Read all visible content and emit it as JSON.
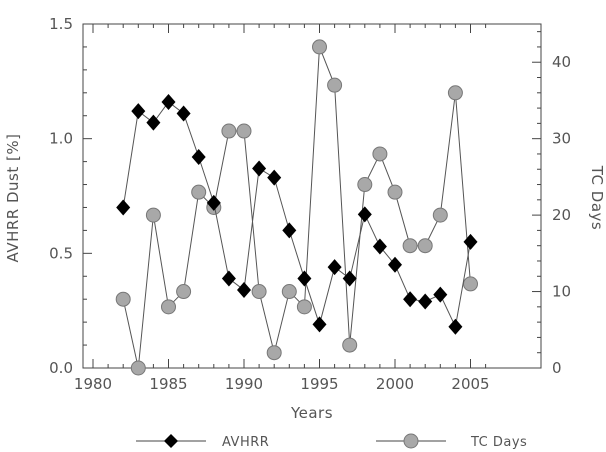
{
  "chart_data": {
    "type": "line",
    "title": "",
    "xlabel": "Years",
    "ylabel_left": "AVHRR Dust [%]",
    "ylabel_right": "TC Days",
    "xlim": [
      1980,
      2006
    ],
    "ylim_left": [
      0.0,
      1.5
    ],
    "ylim_right": [
      0,
      45
    ],
    "x_ticks": [
      "1980",
      "1985",
      "1990",
      "1995",
      "2000",
      "2005"
    ],
    "y_ticks_left": [
      "0.0",
      "0.5",
      "1.0",
      "1.5"
    ],
    "y_ticks_right": [
      "0",
      "10",
      "20",
      "30",
      "40"
    ],
    "x": [
      1982,
      1983,
      1984,
      1985,
      1986,
      1987,
      1988,
      1989,
      1990,
      1991,
      1992,
      1993,
      1994,
      1995,
      1996,
      1997,
      1998,
      1999,
      2000,
      2001,
      2002,
      2003,
      2004,
      2005
    ],
    "series": [
      {
        "name": "AVHRR",
        "axis": "left",
        "marker": "diamond",
        "color": "#000000",
        "values": [
          0.7,
          1.12,
          1.07,
          1.16,
          1.11,
          0.92,
          0.72,
          0.39,
          0.34,
          0.87,
          0.83,
          0.6,
          0.39,
          0.19,
          0.44,
          0.39,
          0.67,
          0.53,
          0.45,
          0.3,
          0.29,
          0.32,
          0.18,
          0.55
        ]
      },
      {
        "name": "TC Days",
        "axis": "right",
        "marker": "circle",
        "color": "#a8a8a8",
        "values": [
          9,
          0,
          20,
          8,
          10,
          23,
          21,
          31,
          31,
          10,
          2,
          10,
          8,
          42,
          37,
          3,
          24,
          28,
          23,
          16,
          16,
          20,
          36,
          11
        ]
      }
    ],
    "legend": [
      "AVHRR",
      "TC Days"
    ],
    "legend_placement": "bottom",
    "grid": false
  }
}
